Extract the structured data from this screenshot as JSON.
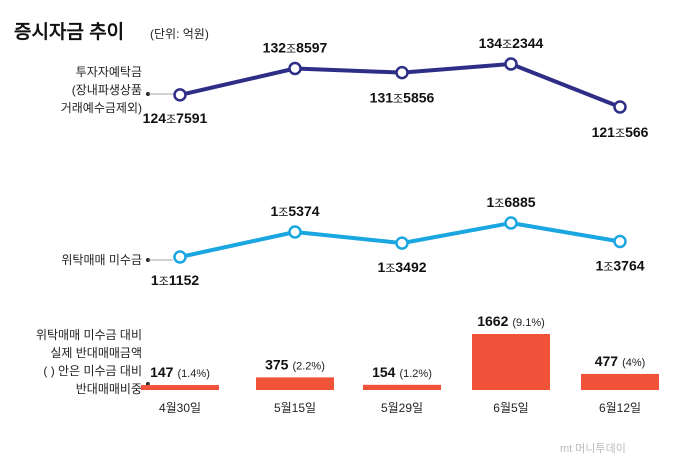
{
  "title": "증시자금 추이",
  "unit": "(단위: 억원)",
  "watermark": "mt 머니투데이",
  "categories": [
    "4월30일",
    "5월15일",
    "5월29일",
    "6월5일",
    "6월12일"
  ],
  "chart_data": [
    {
      "type": "line",
      "label_lines": [
        "투자자예탁금",
        "(장내파생상품",
        "거래예수금제외)"
      ],
      "color": "#2e2e87",
      "values": [
        1247591,
        1328597,
        1315856,
        1342344,
        1210566
      ],
      "display_labels": [
        {
          "big": "124",
          "small": "조",
          "rest": "7591"
        },
        {
          "big": "132",
          "small": "조",
          "rest": "8597"
        },
        {
          "big": "131",
          "small": "조",
          "rest": "5856"
        },
        {
          "big": "134",
          "small": "조",
          "rest": "2344"
        },
        {
          "big": "121",
          "small": "조",
          "rest": "566"
        }
      ]
    },
    {
      "type": "line",
      "label_lines": [
        "위탁매매 미수금"
      ],
      "color": "#1aa6e0",
      "values": [
        11152,
        15374,
        13492,
        16885,
        13764
      ],
      "display_labels": [
        {
          "big": "1",
          "small": "조",
          "rest": "1152"
        },
        {
          "big": "1",
          "small": "조",
          "rest": "5374"
        },
        {
          "big": "1",
          "small": "조",
          "rest": "3492"
        },
        {
          "big": "1",
          "small": "조",
          "rest": "6885"
        },
        {
          "big": "1",
          "small": "조",
          "rest": "3764"
        }
      ]
    },
    {
      "type": "bar",
      "label_lines": [
        "위탁매매 미수금 대비",
        "실제 반대매매금액",
        "( ) 안은 미수금 대비",
        "반대매매비중"
      ],
      "color": "#f0533a",
      "values": [
        147,
        375,
        154,
        1662,
        477
      ],
      "pct_labels": [
        "(1.4%)",
        "(2.2%)",
        "(1.2%)",
        "(9.1%)",
        "(4%)"
      ]
    }
  ]
}
